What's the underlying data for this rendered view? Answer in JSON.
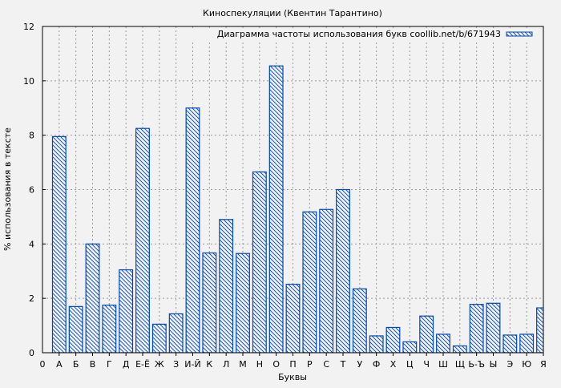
{
  "chart_data": {
    "type": "bar",
    "title": "Киноспекуляции (Квентин Тарантино)",
    "xlabel": "Буквы",
    "ylabel": "% использования в тексте",
    "ylim": [
      0,
      12
    ],
    "xlim": [
      0,
      30
    ],
    "yticks": [
      "0",
      "2",
      "4",
      "6",
      "8",
      "10",
      "12"
    ],
    "x_origin_label": "0",
    "grid": true,
    "legend_position": "top-right",
    "bar_color": "#0047bb",
    "background": "#f2f2f2",
    "categories": [
      "А",
      "Б",
      "В",
      "Г",
      "Д",
      "Е-Ё",
      "Ж",
      "З",
      "И-Й",
      "К",
      "Л",
      "М",
      "Н",
      "О",
      "П",
      "Р",
      "С",
      "Т",
      "У",
      "Ф",
      "Х",
      "Ц",
      "Ч",
      "Ш",
      "Щ",
      "Ь-Ъ",
      "Ы",
      "Э",
      "Ю",
      "Я"
    ],
    "series": [
      {
        "name": "Диаграмма частоты использования букв coollib.net/b/671943",
        "values": [
          7.95,
          1.7,
          4.0,
          1.75,
          3.05,
          8.25,
          1.05,
          1.43,
          9.0,
          3.67,
          4.9,
          3.65,
          6.65,
          10.55,
          2.52,
          5.18,
          5.27,
          6.0,
          2.35,
          0.62,
          0.93,
          0.4,
          1.35,
          0.68,
          0.25,
          1.78,
          1.82,
          0.65,
          0.68,
          1.65
        ]
      }
    ]
  }
}
